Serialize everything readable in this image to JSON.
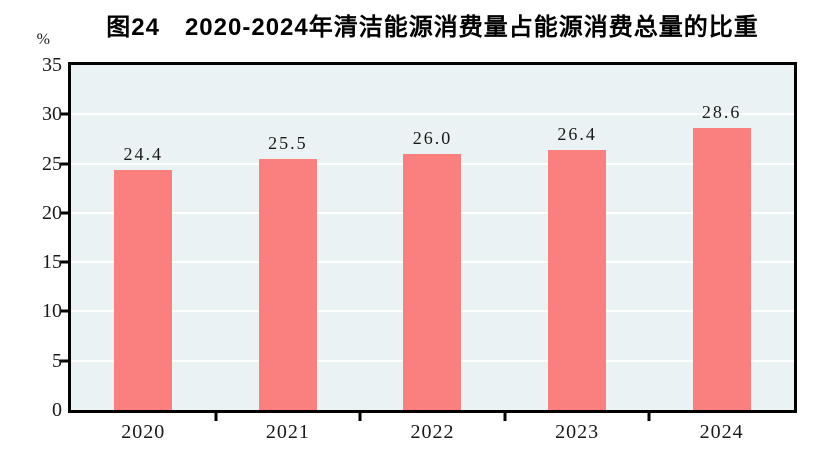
{
  "chart_data": {
    "type": "bar",
    "title": "图24　2020-2024年清洁能源消费量占能源消费总量的比重",
    "unit_label": "%",
    "categories": [
      "2020",
      "2021",
      "2022",
      "2023",
      "2024"
    ],
    "values": [
      24.4,
      25.5,
      26.0,
      26.4,
      28.6
    ],
    "value_labels": [
      "24.4",
      "25.5",
      "26.0",
      "26.4",
      "28.6"
    ],
    "ylabel": "%",
    "xlabel": "",
    "ylim": [
      0,
      35
    ],
    "yticks": [
      0,
      5,
      10,
      15,
      20,
      25,
      30,
      35
    ],
    "grid": true,
    "legend": "none",
    "colors": {
      "bar": "#FA8080",
      "plot_background": "#EBF2F4",
      "gridline": "#FFFFFF",
      "axis": "#000000",
      "title_text": "#000000",
      "label_text": "#1A1A1A",
      "page_background": "#FFFFFF"
    }
  }
}
